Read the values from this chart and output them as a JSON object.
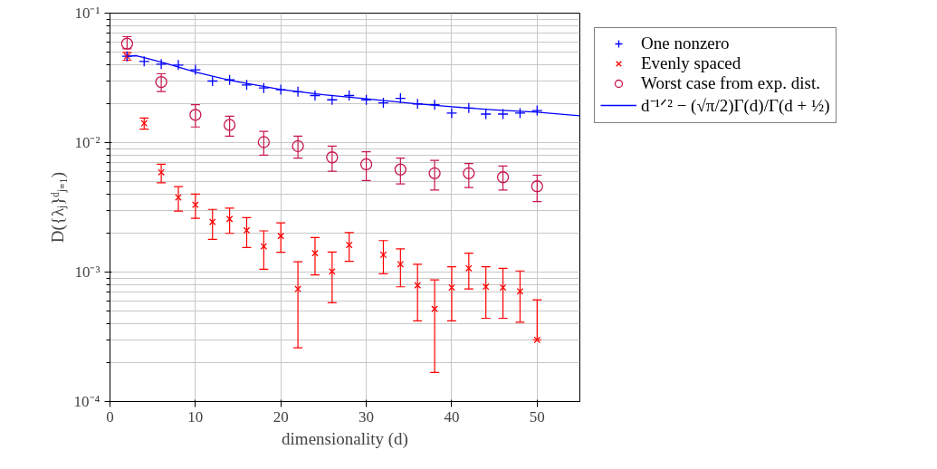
{
  "chart_data": {
    "type": "scatter",
    "xlabel": "dimensionality (d)",
    "ylabel": "D({λⱼ}ᵈⱼ₌₁)",
    "log": "y",
    "grid": true,
    "legend": "top right",
    "xlim": [
      0,
      55
    ],
    "xticks": [
      0,
      10,
      20,
      30,
      40,
      50
    ],
    "ylim": [
      0.0001,
      0.1
    ],
    "yticks": [
      {
        "value": 0.0001,
        "label": "10⁻⁴"
      },
      {
        "value": 0.001,
        "label": "10⁻³"
      },
      {
        "value": 0.01,
        "label": "10⁻²"
      },
      {
        "value": 0.1,
        "label": "10⁻¹"
      }
    ],
    "series": [
      {
        "name": "One nonzero",
        "marker": "cross",
        "color": "#0000ff",
        "x": [
          2,
          4,
          6,
          8,
          10,
          12,
          14,
          16,
          18,
          20,
          22,
          24,
          26,
          28,
          30,
          32,
          34,
          36,
          38,
          40,
          42,
          44,
          46,
          48,
          50
        ],
        "values": [
          0.0464,
          0.0424,
          0.0404,
          0.0397,
          0.0365,
          0.0299,
          0.0305,
          0.0279,
          0.0264,
          0.0256,
          0.0247,
          0.0231,
          0.0214,
          0.0231,
          0.0214,
          0.0203,
          0.022,
          0.0199,
          0.0196,
          0.0169,
          0.0185,
          0.0166,
          0.0166,
          0.0169,
          0.0177
        ]
      },
      {
        "name": "Evenly spaced",
        "marker": "x",
        "color": "#ff0000",
        "x": [
          2,
          4,
          6,
          8,
          10,
          12,
          14,
          16,
          18,
          20,
          22,
          24,
          26,
          28,
          32,
          34,
          36,
          38,
          40,
          42,
          44,
          46,
          48,
          50
        ],
        "values": [
          0.0464,
          0.0141,
          0.0059,
          0.00377,
          0.00331,
          0.00244,
          0.00257,
          0.0021,
          0.00158,
          0.0019,
          0.00074,
          0.0014,
          0.00101,
          0.00162,
          0.00136,
          0.00115,
          0.00079,
          0.00052,
          0.00076,
          0.00107,
          0.00077,
          0.00076,
          0.00071,
          0.0003
        ],
        "errors": [
          [
            0.0433,
            0.0498
          ],
          [
            0.0127,
            0.0155
          ],
          [
            0.0049,
            0.0068
          ],
          [
            0.00296,
            0.00457
          ],
          [
            0.0026,
            0.004
          ],
          [
            0.00179,
            0.00305
          ],
          [
            0.00199,
            0.00312
          ],
          [
            0.00155,
            0.00263
          ],
          [
            0.00105,
            0.00208
          ],
          [
            0.00142,
            0.0024
          ],
          [
            0.00026,
            0.0012
          ],
          [
            0.00095,
            0.00185
          ],
          [
            0.00058,
            0.00143
          ],
          [
            0.00121,
            0.00202
          ],
          [
            0.00097,
            0.00175
          ],
          [
            0.00077,
            0.00151
          ],
          [
            0.00042,
            0.00115
          ],
          [
            0.000168,
            0.00087
          ],
          [
            0.00042,
            0.0011
          ],
          [
            0.00074,
            0.0014
          ],
          [
            0.00044,
            0.0011
          ],
          [
            0.00044,
            0.00107
          ],
          [
            0.00041,
            0.00102
          ],
          [
            0.0003,
            0.00061
          ]
        ]
      },
      {
        "name": "Worst case from exp. dist.",
        "marker": "circle",
        "color": "#c8174b",
        "x": [
          2,
          6,
          10,
          14,
          18,
          22,
          26,
          30,
          34,
          38,
          42,
          46,
          50
        ],
        "values": [
          0.0581,
          0.0294,
          0.0164,
          0.0137,
          0.0101,
          0.0094,
          0.0077,
          0.0068,
          0.0062,
          0.0058,
          0.0058,
          0.0054,
          0.0046
        ],
        "errors": [
          [
            0.0531,
            0.0658
          ],
          [
            0.0248,
            0.034
          ],
          [
            0.0132,
            0.0196
          ],
          [
            0.0112,
            0.016
          ],
          [
            0.008,
            0.0122
          ],
          [
            0.0076,
            0.0112
          ],
          [
            0.006,
            0.0094
          ],
          [
            0.0051,
            0.0085
          ],
          [
            0.0048,
            0.0076
          ],
          [
            0.0043,
            0.0073
          ],
          [
            0.0045,
            0.0069
          ],
          [
            0.0043,
            0.0066
          ],
          [
            0.0035,
            0.0056
          ]
        ]
      },
      {
        "name": "d⁻¹ᐟ² − (√π/2)Γ(d)/Γ(d + ½)",
        "type": "line",
        "color": "#0000ff",
        "x": [
          2,
          3.1,
          4.2,
          6.5,
          10,
          14.4,
          20,
          25,
          30,
          35,
          40,
          45,
          50,
          55
        ],
        "values": [
          0.0464,
          0.0469,
          0.045,
          0.041,
          0.0351,
          0.0299,
          0.0257,
          0.0234,
          0.0218,
          0.0202,
          0.0189,
          0.0179,
          0.0172,
          0.0161
        ]
      }
    ]
  }
}
